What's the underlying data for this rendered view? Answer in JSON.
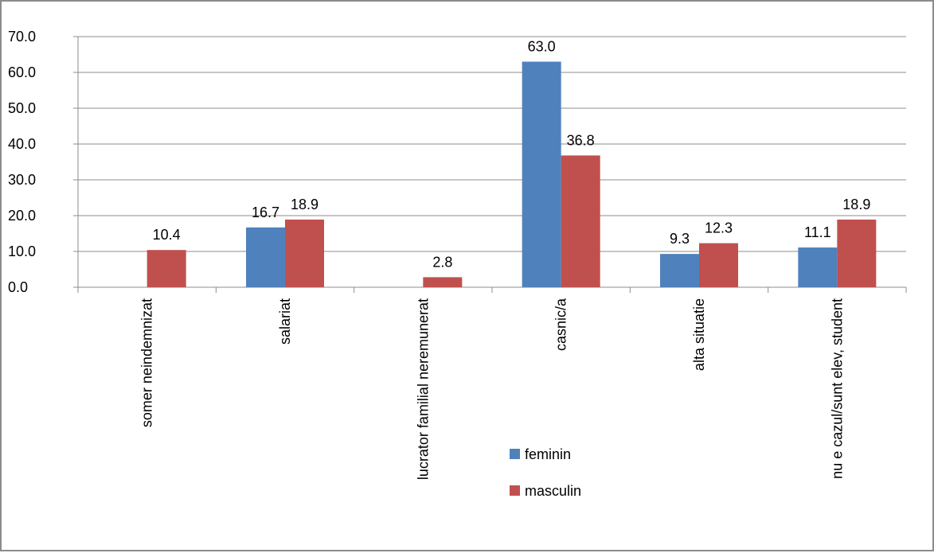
{
  "chart_data": {
    "type": "bar",
    "title": "",
    "xlabel": "",
    "ylabel": "",
    "categories": [
      "somer neindemnizat",
      "salariat",
      "lucrator familial neremunerat",
      "casnic/a",
      "alta situatie",
      "nu e cazul/sunt elev, student"
    ],
    "series": [
      {
        "name": "feminin",
        "color": "#4f81bd",
        "values": [
          null,
          16.7,
          null,
          63.0,
          9.3,
          11.1
        ]
      },
      {
        "name": "masculin",
        "color": "#c0504d",
        "values": [
          10.4,
          18.9,
          2.8,
          36.8,
          12.3,
          18.9
        ]
      }
    ],
    "ylim": [
      0,
      70
    ],
    "yticks": [
      0,
      10,
      20,
      30,
      40,
      50,
      60,
      70
    ],
    "tick_format_decimals": 1,
    "grid": true,
    "data_labels": true,
    "legend_position": "inside-bottom-center",
    "gridline_color": "#8c8c8c",
    "axis_color": "#8c8c8c"
  }
}
